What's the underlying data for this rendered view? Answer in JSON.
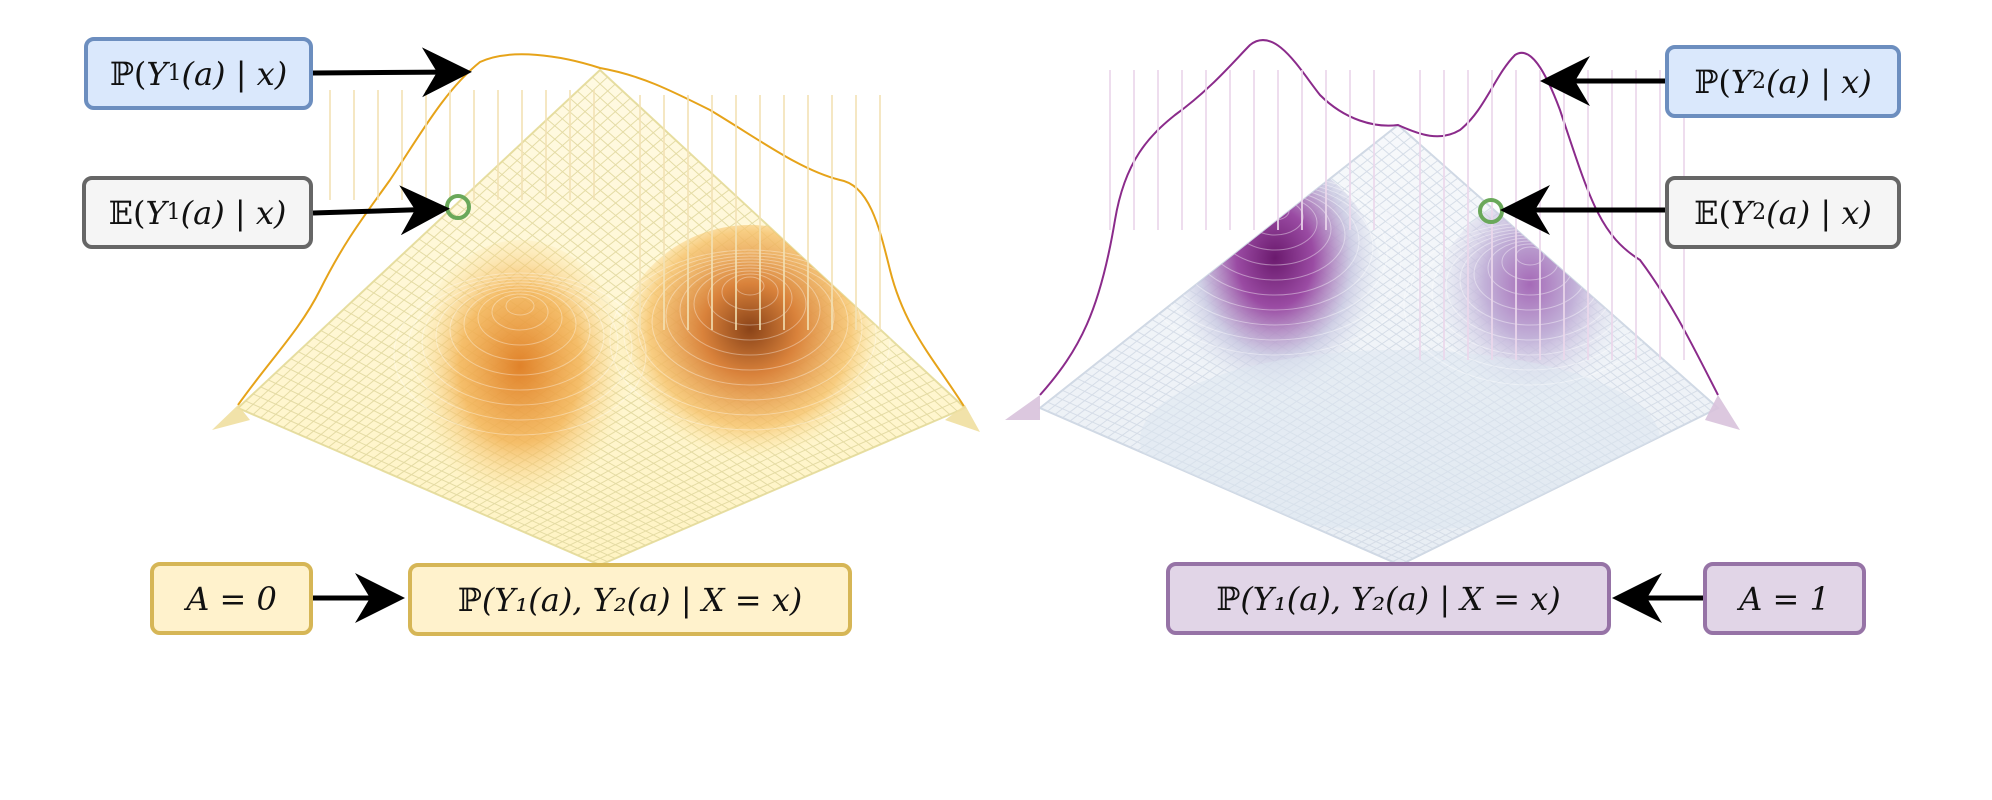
{
  "labels": {
    "p_y1": {
      "bb": "ℙ",
      "var": "Y",
      "sub": "1",
      "rest": "(a) | x)"
    },
    "e_y1": {
      "bb": "𝔼",
      "var": "Y",
      "sub": "1",
      "rest": "(a) | x)"
    },
    "p_y2": {
      "bb": "ℙ",
      "var": "Y",
      "sub": "2",
      "rest": "(a) | x)"
    },
    "e_y2": {
      "bb": "𝔼",
      "var": "Y",
      "sub": "2",
      "rest": "(a) | x)"
    },
    "a0": "A = 0",
    "a1": "A = 1",
    "joint_left": {
      "bb": "ℙ",
      "text": "(Y₁(a), Y₂(a) | X = x)"
    },
    "joint_right": {
      "bb": "ℙ",
      "text": "(Y₁(a), Y₂(a) | X = x)"
    }
  },
  "colors": {
    "left_accent": "#e6a319",
    "left_grid": "#e9e2a8",
    "right_accent": "#8b2b8b",
    "right_grid": "#c9d3e0",
    "marker": "#6aa85a",
    "arrow": "#000000"
  }
}
